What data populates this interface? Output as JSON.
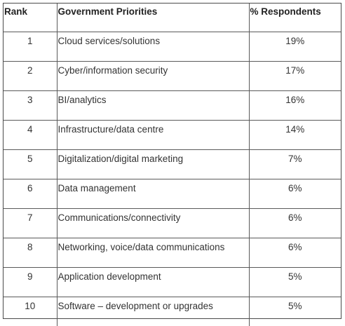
{
  "headers": {
    "rank": "Rank",
    "priority": "Government Priorities",
    "percent": "% Respondents"
  },
  "rows": [
    {
      "rank": "1",
      "priority": "Cloud services/solutions",
      "percent": "19%"
    },
    {
      "rank": "2",
      "priority": "Cyber/information security",
      "percent": "17%"
    },
    {
      "rank": "3",
      "priority": "BI/analytics",
      "percent": "16%"
    },
    {
      "rank": "4",
      "priority": "Infrastructure/data centre",
      "percent": "14%"
    },
    {
      "rank": "5",
      "priority": "Digitalization/digital marketing",
      "percent": "7%"
    },
    {
      "rank": "6",
      "priority": "Data management",
      "percent": "6%"
    },
    {
      "rank": "7",
      "priority": "Communications/connectivity",
      "percent": "6%"
    },
    {
      "rank": "8",
      "priority": "Networking, voice/data communications",
      "percent": "6%"
    },
    {
      "rank": "9",
      "priority": "Application development",
      "percent": "5%"
    },
    {
      "rank": "10",
      "priority": "Software – development or upgrades",
      "percent": "5%"
    }
  ]
}
